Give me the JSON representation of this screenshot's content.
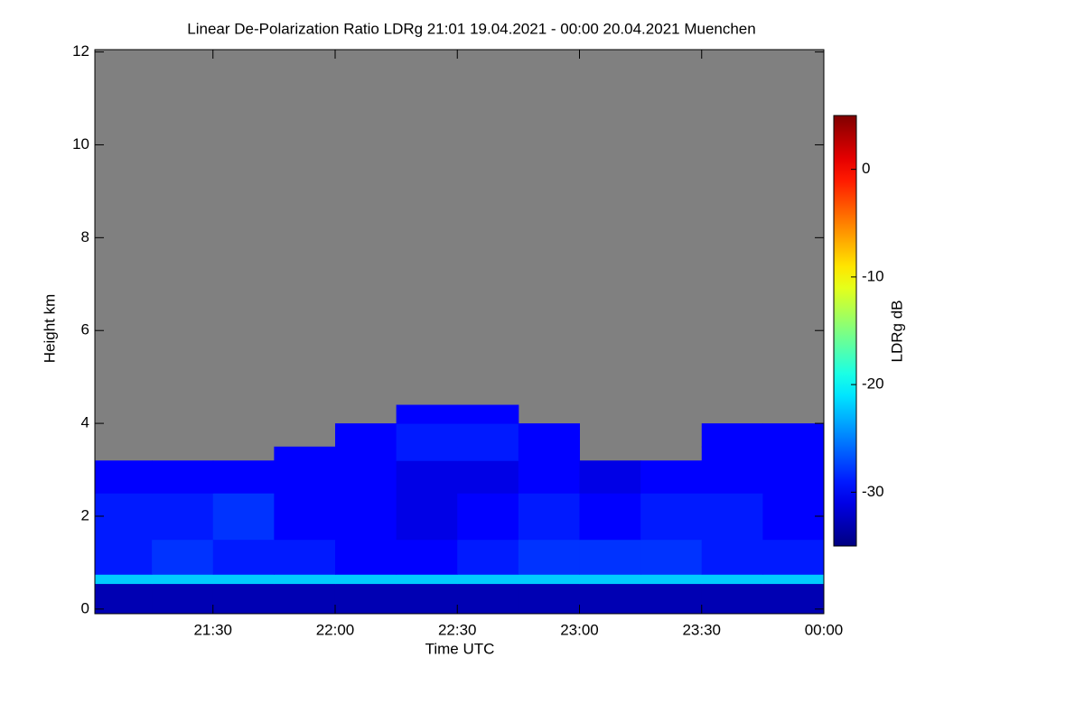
{
  "chart_data": {
    "type": "heatmap",
    "title": "Linear De-Polarization Ratio LDRg   21:01 19.04.2021 - 00:00 20.04.2021 Muenchen",
    "x_label": "Time UTC",
    "y_label": "Height km",
    "colorbar_label": "LDRg dB",
    "colormap": "jet",
    "missing_color": "#808080",
    "xlim": [
      "21:01",
      "00:00"
    ],
    "xticks": [
      "21:30",
      "22:00",
      "22:30",
      "23:00",
      "23:30",
      "00:00"
    ],
    "ylim": [
      -0.1,
      12.05
    ],
    "yticks": [
      0,
      2,
      4,
      6,
      8,
      10,
      12
    ],
    "zlim": [
      -35,
      5
    ],
    "zticks": [
      0,
      -10,
      -20,
      -30
    ],
    "x_edges": [
      "21:01",
      "21:15",
      "21:30",
      "21:45",
      "22:00",
      "22:15",
      "22:30",
      "22:45",
      "23:00",
      "23:15",
      "23:30",
      "23:45",
      "00:00"
    ],
    "y_edges": [
      -0.1,
      0.55,
      0.75,
      1.5,
      2.5,
      3.2,
      3.5,
      4,
      4.4,
      12.05
    ],
    "z": [
      [
        -33,
        -33,
        -33,
        -33,
        -33,
        -33,
        -33,
        -33,
        -33,
        -33,
        -33,
        -33
      ],
      [
        -22,
        -22,
        -22,
        -22,
        -22,
        -22,
        -22,
        -22,
        -22,
        -22,
        -22,
        -22
      ],
      [
        -29,
        -28,
        -29,
        -29,
        -30,
        -30,
        -29,
        -28,
        -28,
        -28,
        -29,
        -29
      ],
      [
        -29,
        -29,
        -28,
        -30,
        -30,
        -31,
        -30,
        -29,
        -30,
        -29,
        -29,
        -30
      ],
      [
        -30,
        -30,
        -30,
        -30,
        -30,
        -31,
        -31,
        -30,
        -31,
        -30,
        -30,
        -30
      ],
      [
        null,
        null,
        null,
        -30,
        -30,
        -29,
        -29,
        -30,
        null,
        null,
        -30,
        -30
      ],
      [
        null,
        null,
        null,
        null,
        -30,
        -29,
        -29,
        -30,
        null,
        null,
        -30,
        -30
      ],
      [
        null,
        null,
        null,
        null,
        null,
        -30,
        -30,
        null,
        null,
        null,
        null,
        null
      ],
      [
        null,
        null,
        null,
        null,
        null,
        null,
        null,
        null,
        null,
        null,
        null,
        null
      ]
    ]
  }
}
